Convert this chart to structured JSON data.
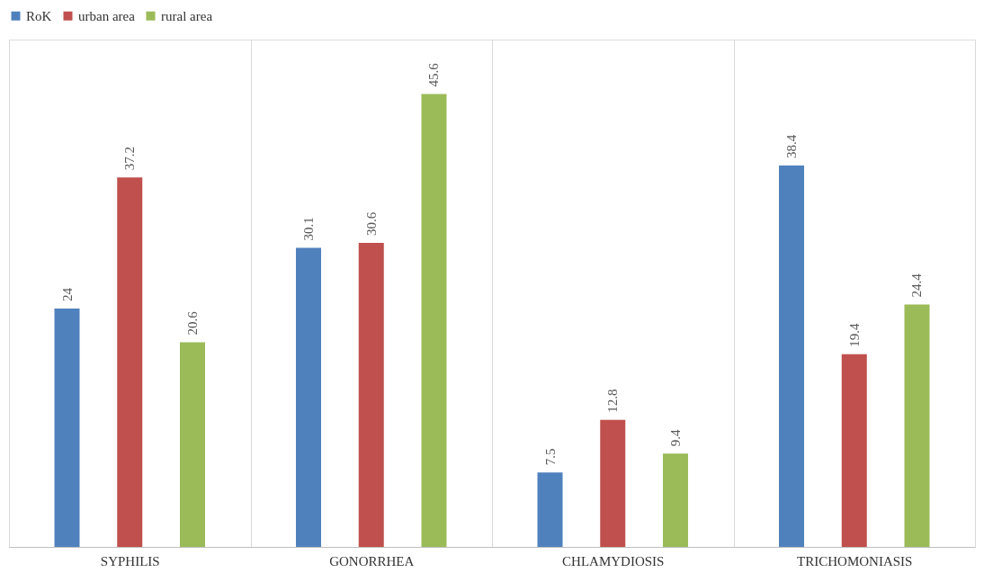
{
  "chart_data": {
    "type": "bar",
    "categories": [
      "SYPHILIS",
      "GONORRHEA",
      "CHLAMYDIOSIS",
      "TRICHOMONIASIS"
    ],
    "series": [
      {
        "name": "RoK",
        "color": "#4f81bd",
        "values": [
          24,
          30.1,
          7.5,
          38.4
        ]
      },
      {
        "name": "urban area",
        "color": "#c0504d",
        "values": [
          37.2,
          30.6,
          12.8,
          19.4
        ]
      },
      {
        "name": "rural area",
        "color": "#9bbb59",
        "values": [
          20.6,
          45.6,
          9.4,
          24.4
        ]
      }
    ],
    "data_labels": true,
    "grid": "x",
    "legend": "top",
    "tick_labels": "x"
  }
}
